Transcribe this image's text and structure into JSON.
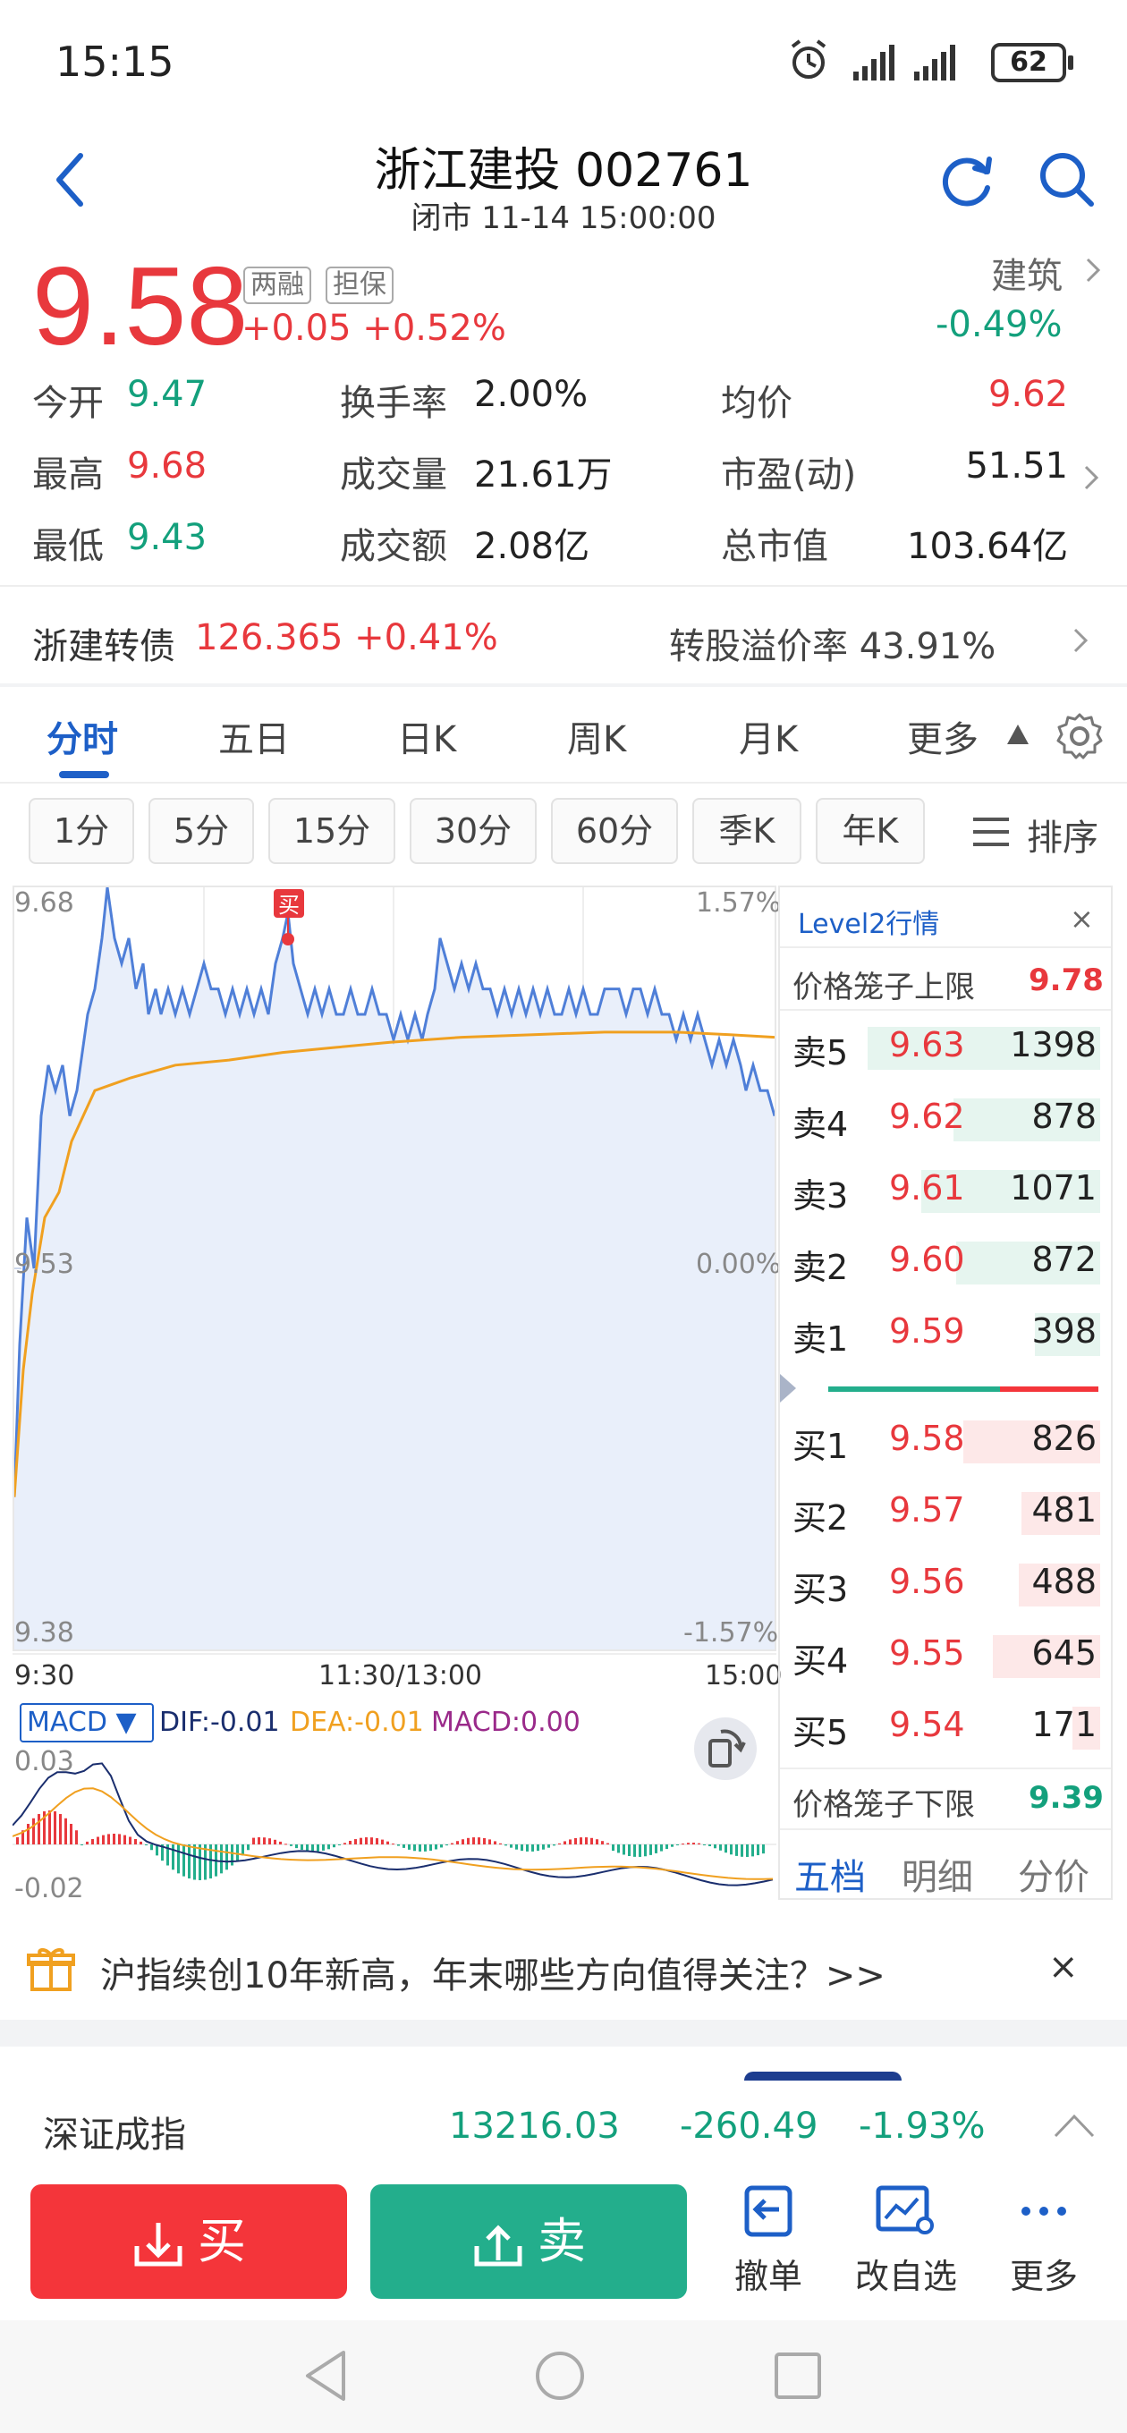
{
  "status_bar": {
    "time": "15:15",
    "battery": "62"
  },
  "header": {
    "title": "浙江建投 002761",
    "subtitle": "闭市 11-14 15:00:00"
  },
  "quote": {
    "price": "9.58",
    "tags": [
      "两融",
      "担保"
    ],
    "change": "+0.05",
    "change_pct": "+0.52%",
    "sector": "建筑",
    "sector_change": "-0.49%",
    "stats": [
      {
        "label": "今开",
        "value": "9.47",
        "color": "#13a07c"
      },
      {
        "label": "换手率",
        "value": "2.00%",
        "color": "#222222"
      },
      {
        "label": "均价",
        "value": "9.62",
        "color": "#e8383d"
      },
      {
        "label": "最高",
        "value": "9.68",
        "color": "#e8383d"
      },
      {
        "label": "成交量",
        "value": "21.61万",
        "color": "#222222"
      },
      {
        "label": "市盈(动)",
        "value": "51.51",
        "color": "#222222"
      },
      {
        "label": "最低",
        "value": "9.43",
        "color": "#13a07c"
      },
      {
        "label": "成交额",
        "value": "2.08亿",
        "color": "#222222"
      },
      {
        "label": "总市值",
        "value": "103.64亿",
        "color": "#222222"
      }
    ]
  },
  "convertible": {
    "name": "浙建转债",
    "price": "126.365 +0.41%",
    "premium_label": "转股溢价率 43.91%"
  },
  "tabs": [
    "分时",
    "五日",
    "日K",
    "周K",
    "月K",
    "更多"
  ],
  "periods": [
    "1分",
    "5分",
    "15分",
    "30分",
    "60分",
    "季K",
    "年K"
  ],
  "sort_label": "排序",
  "chart": {
    "y_top": "9.68",
    "y_mid": "9.53",
    "y_bottom": "9.38",
    "pct_top": "1.57%",
    "pct_mid": "0.00%",
    "pct_bottom": "-1.57%",
    "time_labels": [
      "9:30",
      "11:30/13:00",
      "15:00"
    ],
    "buy_marker": "买",
    "colors": {
      "price_line": "#4f7fd8",
      "avg_line": "#f0a020",
      "fill": "#e9effa"
    }
  },
  "macd": {
    "selector": "MACD ▼",
    "dif": "DIF:-0.01",
    "dea": "DEA:-0.01",
    "macd": "MACD:0.00",
    "y_top": "0.03",
    "y_bottom": "-0.02"
  },
  "level2": {
    "title": "Level2行情",
    "close": "×",
    "upper_limit_label": "价格笼子上限",
    "upper_limit": "9.78",
    "asks": [
      {
        "label": "卖5",
        "price": "9.63",
        "volume": "1398",
        "depth": 1.0
      },
      {
        "label": "卖4",
        "price": "9.62",
        "volume": "878",
        "depth": 0.63
      },
      {
        "label": "卖3",
        "price": "9.61",
        "volume": "1071",
        "depth": 0.77
      },
      {
        "label": "卖2",
        "price": "9.60",
        "volume": "872",
        "depth": 0.62
      },
      {
        "label": "卖1",
        "price": "9.59",
        "volume": "398",
        "depth": 0.28
      }
    ],
    "bids": [
      {
        "label": "买1",
        "price": "9.58",
        "volume": "826",
        "depth": 0.59
      },
      {
        "label": "买2",
        "price": "9.57",
        "volume": "481",
        "depth": 0.34
      },
      {
        "label": "买3",
        "price": "9.56",
        "volume": "488",
        "depth": 0.35
      },
      {
        "label": "买4",
        "price": "9.55",
        "volume": "645",
        "depth": 0.46
      },
      {
        "label": "买5",
        "price": "9.54",
        "volume": "171",
        "depth": 0.12
      }
    ],
    "lower_limit_label": "价格笼子下限",
    "lower_limit": "9.39",
    "bottom_tabs": [
      "五档",
      "明细",
      "分价"
    ]
  },
  "banner": {
    "text": "沪指续创10年新高，年末哪些方向值得关注？>>",
    "close": "×"
  },
  "index_ticker": {
    "name": "深证成指",
    "value": "13216.03",
    "change": "-260.49",
    "pct": "-1.93%"
  },
  "actions": {
    "buy": "买",
    "sell": "卖",
    "cancel": "撤单",
    "edit_watch": "改自选",
    "more": "更多"
  }
}
